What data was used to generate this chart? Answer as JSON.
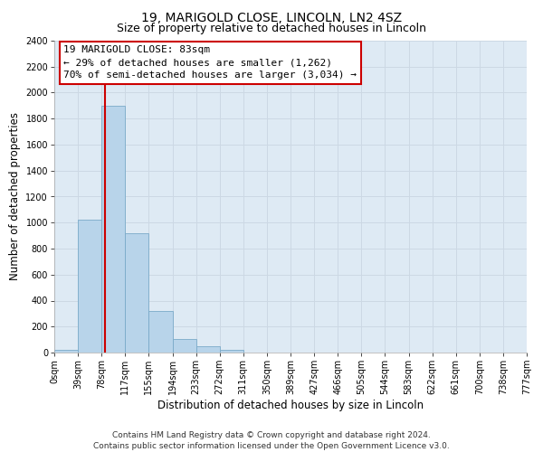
{
  "title": "19, MARIGOLD CLOSE, LINCOLN, LN2 4SZ",
  "subtitle": "Size of property relative to detached houses in Lincoln",
  "xlabel": "Distribution of detached houses by size in Lincoln",
  "ylabel": "Number of detached properties",
  "footer_line1": "Contains HM Land Registry data © Crown copyright and database right 2024.",
  "footer_line2": "Contains public sector information licensed under the Open Government Licence v3.0.",
  "bin_labels": [
    "0sqm",
    "39sqm",
    "78sqm",
    "117sqm",
    "155sqm",
    "194sqm",
    "233sqm",
    "272sqm",
    "311sqm",
    "350sqm",
    "389sqm",
    "427sqm",
    "466sqm",
    "505sqm",
    "544sqm",
    "583sqm",
    "622sqm",
    "661sqm",
    "700sqm",
    "738sqm",
    "777sqm"
  ],
  "bar_values": [
    20,
    1020,
    1900,
    920,
    320,
    105,
    50,
    20,
    0,
    0,
    0,
    0,
    0,
    0,
    0,
    0,
    0,
    0,
    0,
    0
  ],
  "bar_color": "#b8d4ea",
  "bar_edge_color": "#7aaac8",
  "ylim": [
    0,
    2400
  ],
  "yticks": [
    0,
    200,
    400,
    600,
    800,
    1000,
    1200,
    1400,
    1600,
    1800,
    2000,
    2200,
    2400
  ],
  "vline_color": "#cc0000",
  "annotation_title": "19 MARIGOLD CLOSE: 83sqm",
  "annotation_line1": "← 29% of detached houses are smaller (1,262)",
  "annotation_line2": "70% of semi-detached houses are larger (3,034) →",
  "annotation_box_color": "#ffffff",
  "annotation_box_edge": "#cc0000",
  "grid_color": "#ccd8e4",
  "background_color": "#deeaf4",
  "title_fontsize": 10,
  "subtitle_fontsize": 9,
  "axis_label_fontsize": 8.5,
  "tick_fontsize": 7,
  "annotation_fontsize": 8,
  "footer_fontsize": 6.5
}
